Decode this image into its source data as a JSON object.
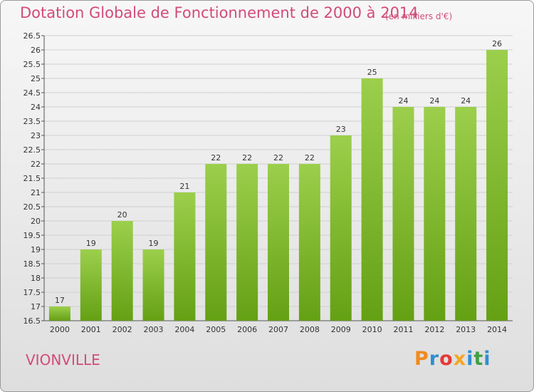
{
  "header": {
    "title": "Dotation Globale de Fonctionnement de 2000 à 2014",
    "subtitle": "(en milliers d'€)"
  },
  "footer": {
    "commune": "VIONVILLE",
    "logo": [
      "P",
      "r",
      "o",
      "x",
      "i",
      "t",
      "i"
    ]
  },
  "colors": {
    "title": "#d24b7a",
    "bar_top": "#9ccf4c",
    "bar_bottom": "#64a014",
    "logo": [
      "#f08a1c",
      "#2f8fd0",
      "#e53935",
      "#f5a623",
      "#2f8fd0",
      "#43a047",
      "#2f8fd0"
    ]
  },
  "chart_data": {
    "type": "bar",
    "categories": [
      "2000",
      "2001",
      "2002",
      "2003",
      "2004",
      "2005",
      "2006",
      "2007",
      "2008",
      "2009",
      "2010",
      "2011",
      "2012",
      "2013",
      "2014"
    ],
    "values": [
      17,
      19,
      20,
      19,
      21,
      22,
      22,
      22,
      22,
      23,
      25,
      24,
      24,
      24,
      26
    ],
    "data_labels": [
      "17",
      "19",
      "20",
      "19",
      "21",
      "22",
      "22",
      "22",
      "22",
      "23",
      "25",
      "24",
      "24",
      "24",
      "26"
    ],
    "yticks": [
      "16.5",
      "17",
      "17.5",
      "18",
      "18.5",
      "19",
      "19.5",
      "20",
      "20.5",
      "21",
      "21.5",
      "22",
      "22.5",
      "23",
      "23.5",
      "24",
      "24.5",
      "25",
      "25.5",
      "26",
      "26.5"
    ],
    "ylim": [
      16.5,
      26.5
    ],
    "grid": true,
    "title": "Dotation Globale de Fonctionnement de 2000 à 2014",
    "xlabel": "",
    "ylabel": ""
  }
}
